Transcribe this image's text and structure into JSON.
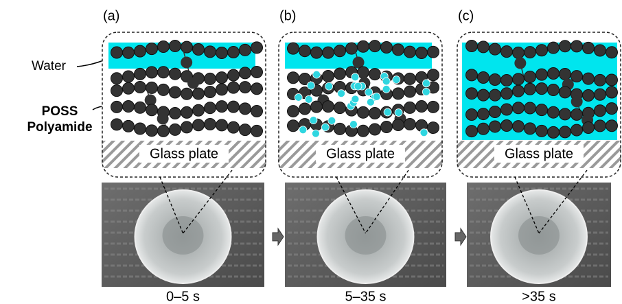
{
  "labels": {
    "water": "Water",
    "poss": "POSS",
    "polyamide": "Polyamide"
  },
  "panels": [
    {
      "label": "(a)",
      "glass": "Glass plate",
      "time": "0–5 s"
    },
    {
      "label": "(b)",
      "glass": "Glass plate",
      "time": "5–35 s"
    },
    {
      "label": "(c)",
      "glass": "Glass plate",
      "time": ">35 s"
    }
  ]
}
